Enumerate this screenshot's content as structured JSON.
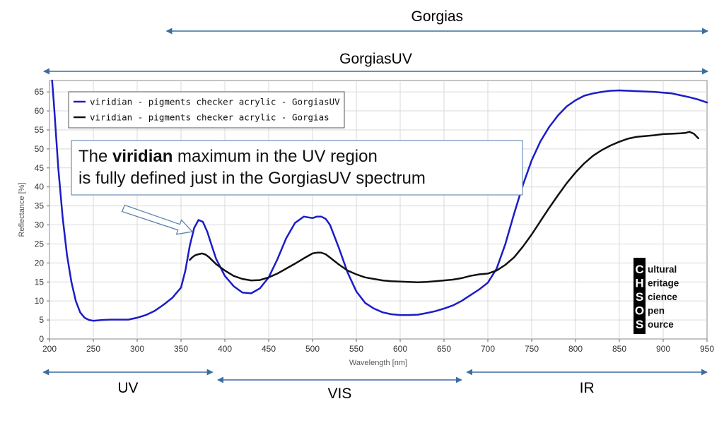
{
  "colors": {
    "uv_series": "#1c1cc8",
    "vis_series": "#111111",
    "range_arrow": "#3c6d9f",
    "grid": "#d9d9d9",
    "callout_border": "#6a90b8",
    "callout_arrow": "#5a82ad"
  },
  "range_bars": {
    "gorgias": {
      "label": "Gorgias",
      "from": 340,
      "to": 950
    },
    "gorgiasuv": {
      "label": "GorgiasUV",
      "from": 200,
      "to": 950
    }
  },
  "regions": [
    {
      "label": "UV",
      "from": 193,
      "to": 386
    },
    {
      "label": "VIS",
      "from": 392,
      "to": 670
    },
    {
      "label": "IR",
      "from": 676,
      "to": 950
    }
  ],
  "annotation": {
    "line1_pre": "The ",
    "line1_bold": "viridian",
    "line1_post": " maximum in the UV region",
    "line2": "is fully defined just in the GorgiasUV spectrum",
    "arrow_target": [
      374,
      29
    ]
  },
  "logo": {
    "letters": [
      "C",
      "H",
      "S",
      "O",
      "S"
    ],
    "words": [
      "ultural",
      "eritage",
      "cience",
      "pen",
      "ource"
    ]
  },
  "chart_data": {
    "type": "line",
    "xlabel": "Wavelength [nm]",
    "ylabel": "Reflectance [%]",
    "xlim": [
      200,
      950
    ],
    "ylim": [
      0,
      68
    ],
    "xticks": [
      200,
      250,
      300,
      350,
      400,
      450,
      500,
      550,
      600,
      650,
      700,
      750,
      800,
      850,
      900,
      950
    ],
    "yticks": [
      0,
      5,
      10,
      15,
      20,
      25,
      30,
      35,
      40,
      45,
      50,
      55,
      60,
      65
    ],
    "grid": true,
    "legend_position": "top-left",
    "series": [
      {
        "name": "viridian - pigments checker acrylic - GorgiasUV",
        "x": [
          203,
          205,
          210,
          215,
          220,
          225,
          230,
          235,
          240,
          245,
          250,
          260,
          270,
          280,
          290,
          300,
          310,
          320,
          330,
          340,
          350,
          355,
          360,
          365,
          370,
          375,
          380,
          385,
          390,
          400,
          410,
          420,
          430,
          440,
          450,
          460,
          470,
          480,
          490,
          500,
          505,
          510,
          515,
          520,
          530,
          540,
          550,
          560,
          570,
          580,
          590,
          600,
          610,
          620,
          630,
          640,
          650,
          660,
          670,
          680,
          690,
          700,
          710,
          720,
          730,
          740,
          750,
          760,
          770,
          780,
          790,
          800,
          810,
          820,
          830,
          840,
          850,
          860,
          870,
          880,
          890,
          900,
          910,
          920,
          930,
          940,
          950
        ],
        "values": [
          68,
          62,
          45,
          32,
          22,
          15,
          10,
          7,
          5.6,
          5.0,
          4.8,
          5.0,
          5.1,
          5.1,
          5.1,
          5.6,
          6.3,
          7.4,
          9.0,
          10.8,
          13.5,
          18.0,
          24.5,
          29.2,
          31.3,
          30.8,
          28.2,
          24.6,
          21.1,
          16.6,
          13.9,
          12.2,
          12.0,
          13.3,
          16.2,
          21.0,
          26.5,
          30.5,
          32.2,
          31.8,
          32.2,
          32.2,
          31.6,
          30.0,
          24.0,
          17.5,
          12.5,
          9.5,
          8.0,
          7.0,
          6.5,
          6.3,
          6.3,
          6.4,
          6.8,
          7.3,
          8.0,
          8.8,
          10.0,
          11.5,
          13.0,
          14.8,
          18.5,
          25.0,
          33.0,
          40.5,
          47.0,
          52.0,
          55.8,
          58.8,
          61.2,
          62.8,
          64.0,
          64.6,
          65.0,
          65.3,
          65.4,
          65.3,
          65.2,
          65.1,
          65.0,
          64.8,
          64.6,
          64.1,
          63.6,
          63.0,
          62.2
        ]
      },
      {
        "name": "viridian - pigments checker acrylic - Gorgias",
        "x": [
          360,
          363,
          366,
          370,
          374,
          378,
          382,
          386,
          390,
          400,
          410,
          420,
          430,
          440,
          450,
          460,
          470,
          480,
          490,
          500,
          505,
          510,
          515,
          520,
          530,
          540,
          550,
          560,
          570,
          580,
          590,
          600,
          610,
          620,
          630,
          640,
          650,
          660,
          670,
          680,
          690,
          700,
          710,
          720,
          730,
          740,
          750,
          760,
          770,
          780,
          790,
          800,
          810,
          820,
          830,
          840,
          850,
          860,
          870,
          880,
          890,
          900,
          910,
          920,
          925,
          930,
          935,
          940
        ],
        "values": [
          20.8,
          21.5,
          22.0,
          22.3,
          22.5,
          22.2,
          21.5,
          20.6,
          19.7,
          18.0,
          16.6,
          15.8,
          15.4,
          15.5,
          16.2,
          17.2,
          18.5,
          19.8,
          21.2,
          22.5,
          22.7,
          22.7,
          22.3,
          21.4,
          19.6,
          18.0,
          17.0,
          16.2,
          15.8,
          15.4,
          15.2,
          15.1,
          15.0,
          14.9,
          15.0,
          15.2,
          15.4,
          15.6,
          16.0,
          16.6,
          17.0,
          17.2,
          18.0,
          19.5,
          21.5,
          24.3,
          27.5,
          31.0,
          34.5,
          37.8,
          41.0,
          43.8,
          46.2,
          48.2,
          49.7,
          50.9,
          51.9,
          52.7,
          53.2,
          53.4,
          53.6,
          53.9,
          54.0,
          54.1,
          54.2,
          54.5,
          54.0,
          52.8
        ]
      }
    ]
  }
}
